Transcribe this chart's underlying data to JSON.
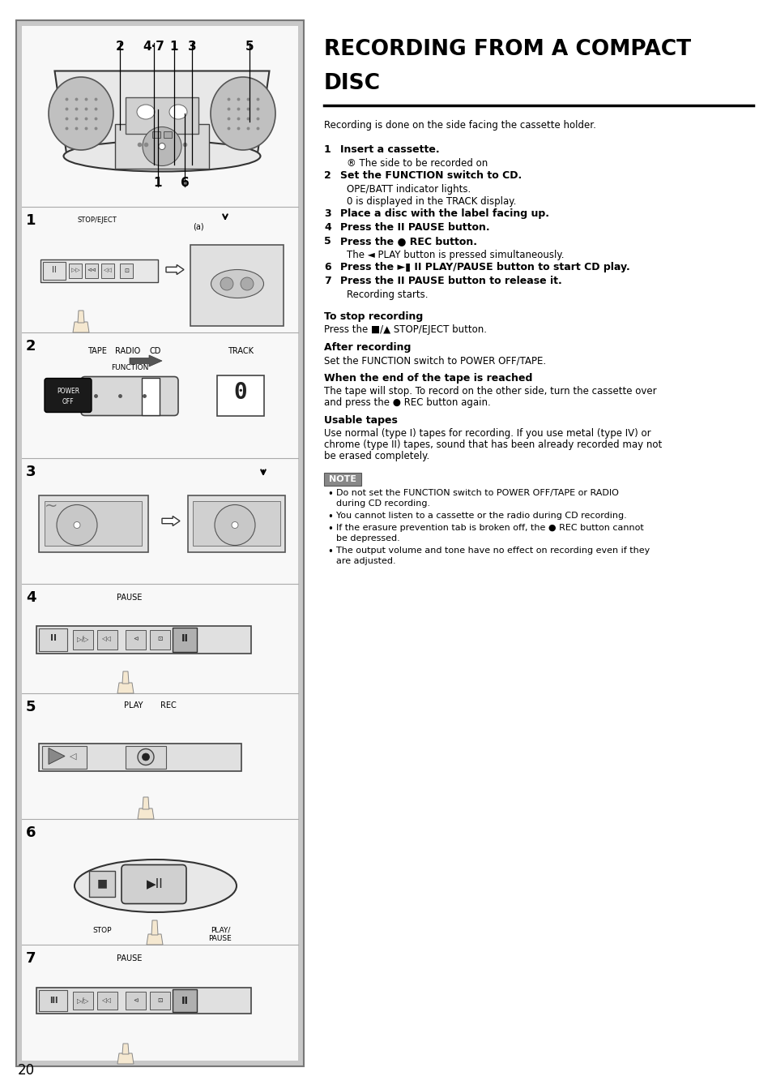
{
  "title_line1": "RECORDING FROM A COMPACT",
  "title_line2": "DISC",
  "intro_text": "Recording is done on the side facing the cassette holder.",
  "steps": [
    {
      "num": "1",
      "bold": "Insert a cassette.",
      "sub": "® The side to be recorded on"
    },
    {
      "num": "2",
      "bold": "Set the FUNCTION switch to CD.",
      "sub": "OPE/BATT indicator lights.\n0 is displayed in the TRACK display."
    },
    {
      "num": "3",
      "bold": "Place a disc with the label facing up.",
      "sub": ""
    },
    {
      "num": "4",
      "bold": "Press the II PAUSE button.",
      "sub": ""
    },
    {
      "num": "5",
      "bold": "Press the ● REC button.",
      "sub": "The ◄ PLAY button is pressed simultaneously."
    },
    {
      "num": "6",
      "bold": "Press the ►▮ II PLAY/PAUSE button to start CD play.",
      "sub": ""
    },
    {
      "num": "7",
      "bold": "Press the II PAUSE button to release it.",
      "sub": "Recording starts."
    }
  ],
  "sections": [
    {
      "heading": "To stop recording",
      "body": "Press the ■/▲ STOP/EJECT button."
    },
    {
      "heading": "After recording",
      "body": "Set the FUNCTION switch to POWER OFF/TAPE."
    },
    {
      "heading": "When the end of the tape is reached",
      "body": "The tape will stop. To record on the other side, turn the cassette over\nand press the ● REC button again."
    },
    {
      "heading": "Usable tapes",
      "body": "Use normal (type I) tapes for recording. If you use metal (type IV) or\nchrome (type II) tapes, sound that has been already recorded may not\nbe erased completely."
    }
  ],
  "note_label": "NOTE",
  "note_bullets": [
    "Do not set the FUNCTION switch to POWER OFF/TAPE or RADIO\nduring CD recording.",
    "You cannot listen to a cassette or the radio during CD recording.",
    "If the erasure prevention tab is broken off, the ● REC button cannot\nbe depressed.",
    "The output volume and tone have no effect on recording even if they\nare adjusted."
  ],
  "page_number": "20",
  "bg_color": "#ffffff",
  "panel_border_color": "#aaaaaa",
  "panel_bg_color": "#c8c8c8",
  "panel_inner_bg": "#f0f0f0",
  "divider_color": "#aaaaaa",
  "text_color": "#000000"
}
